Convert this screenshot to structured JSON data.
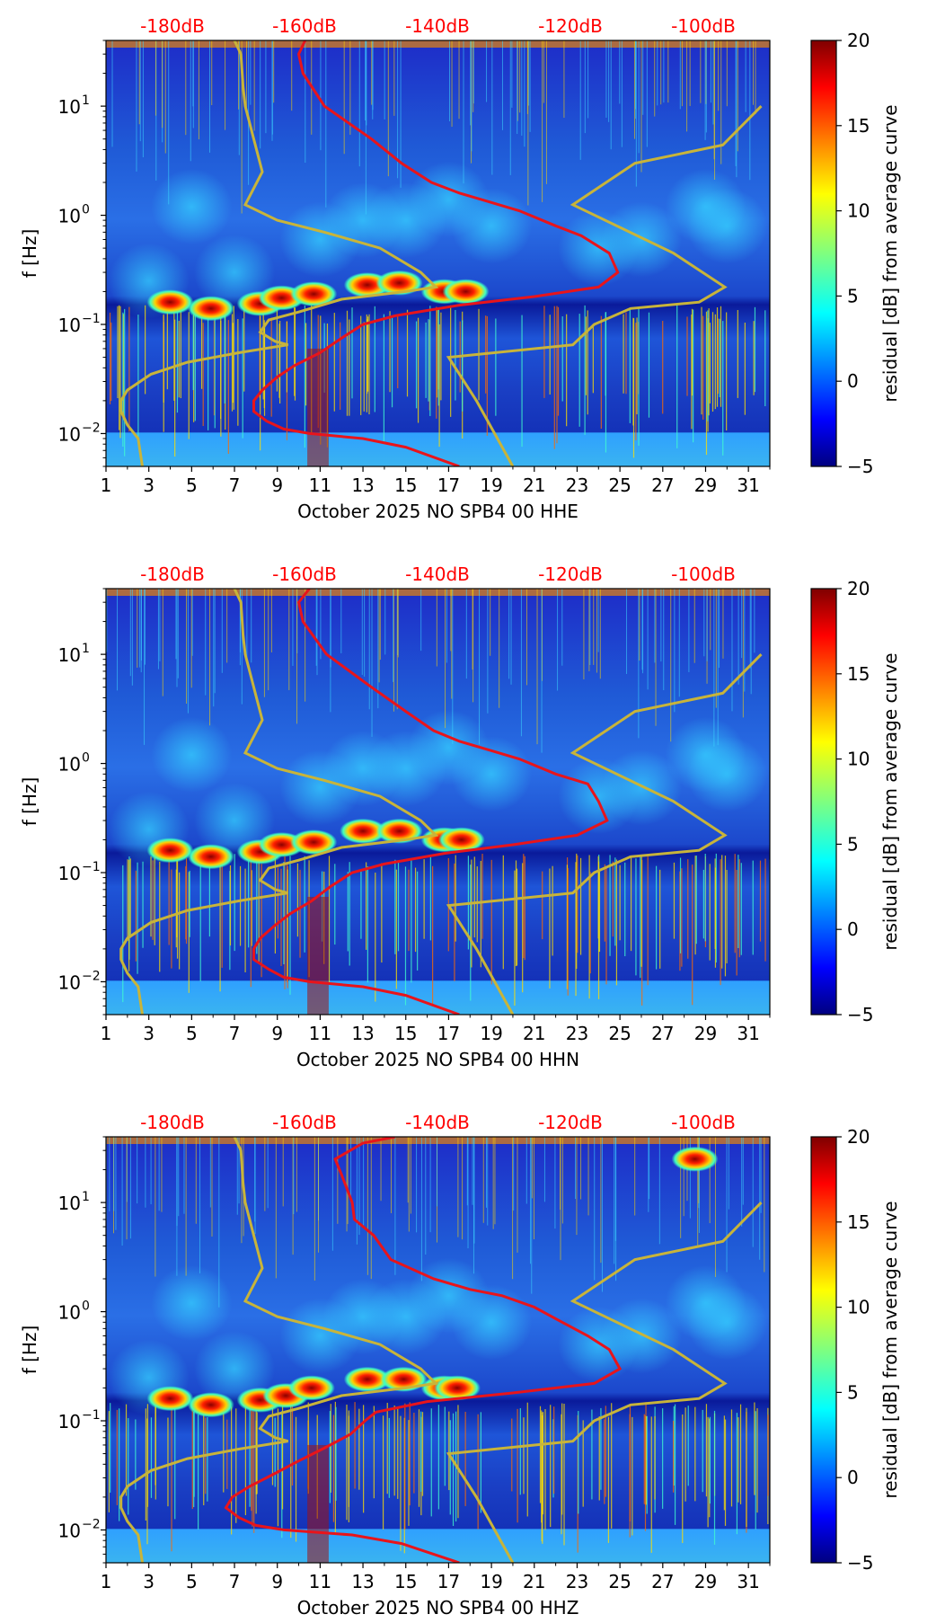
{
  "colorbar": {
    "label": "residual [dB] from average curve",
    "ticks": [
      20,
      15,
      10,
      5,
      0,
      -5
    ],
    "tick_labels": [
      "20",
      "15",
      "10",
      "5",
      "0",
      "−5"
    ],
    "range": [
      -5,
      20
    ],
    "colormap": "jet"
  },
  "colors": {
    "curve_red": "#e8141b",
    "curve_olive": "#c8b43a",
    "db_label": "#ff0000",
    "background_low": "#00008f",
    "background_mid": "#2a8cff"
  },
  "chart_data": [
    {
      "type": "heatmap",
      "component": "HHE",
      "xlabel": "October 2025 NO SPB4 00 HHE",
      "ylabel": "f [Hz]",
      "xlim": [
        1,
        32
      ],
      "ylim": [
        0.005,
        40
      ],
      "x_ticks": [
        "1",
        "3",
        "5",
        "7",
        "9",
        "11",
        "13",
        "15",
        "17",
        "19",
        "21",
        "23",
        "25",
        "27",
        "29",
        "31"
      ],
      "y_ticks": [
        {
          "value": 10,
          "label": "10",
          "exp": "1"
        },
        {
          "value": 1,
          "label": "10",
          "exp": "0"
        },
        {
          "value": 0.1,
          "label": "10",
          "exp": "−1"
        },
        {
          "value": 0.01,
          "label": "10",
          "exp": "−2"
        }
      ],
      "top_labels": [
        "-180dB",
        "-160dB",
        "-140dB",
        "-120dB",
        "-100dB"
      ],
      "red_curve": [
        [
          10.3,
          40
        ],
        [
          10.0,
          30
        ],
        [
          10.2,
          20
        ],
        [
          11.2,
          10
        ],
        [
          13.4,
          5
        ],
        [
          14.8,
          3
        ],
        [
          16.2,
          2
        ],
        [
          17.5,
          1.6
        ],
        [
          18.5,
          1.4
        ],
        [
          20.3,
          1.1
        ],
        [
          22.0,
          0.8
        ],
        [
          23.2,
          0.65
        ],
        [
          24.5,
          0.45
        ],
        [
          24.9,
          0.3
        ],
        [
          24.0,
          0.22
        ],
        [
          21.0,
          0.18
        ],
        [
          17.5,
          0.15
        ],
        [
          14.5,
          0.12
        ],
        [
          13.0,
          0.1
        ],
        [
          12.0,
          0.075
        ],
        [
          11.0,
          0.055
        ],
        [
          9.8,
          0.042
        ],
        [
          9.0,
          0.033
        ],
        [
          8.3,
          0.025
        ],
        [
          7.9,
          0.02
        ],
        [
          7.9,
          0.016
        ],
        [
          8.5,
          0.013
        ],
        [
          9.3,
          0.011
        ],
        [
          10.5,
          0.01
        ],
        [
          13.0,
          0.009
        ],
        [
          15.0,
          0.0075
        ],
        [
          17.5,
          0.005
        ]
      ],
      "olive_curve": [
        [
          7.0,
          40
        ],
        [
          7.3,
          30
        ],
        [
          7.4,
          15
        ],
        [
          7.5,
          10
        ],
        [
          7.9,
          5
        ],
        [
          8.3,
          2.5
        ],
        [
          7.5,
          1.25
        ],
        [
          9.0,
          0.9
        ],
        [
          11.2,
          0.7
        ],
        [
          13.8,
          0.5
        ],
        [
          15.7,
          0.3
        ],
        [
          16.4,
          0.22
        ],
        [
          15.0,
          0.2
        ],
        [
          12.0,
          0.17
        ],
        [
          10.0,
          0.13
        ],
        [
          8.6,
          0.11
        ],
        [
          8.2,
          0.085
        ],
        [
          8.9,
          0.07
        ],
        [
          9.5,
          0.065
        ],
        [
          7.2,
          0.055
        ],
        [
          4.8,
          0.045
        ],
        [
          3.1,
          0.035
        ],
        [
          2.0,
          0.025
        ],
        [
          1.7,
          0.02
        ],
        [
          1.7,
          0.016
        ],
        [
          2.0,
          0.012
        ],
        [
          2.5,
          0.009
        ],
        [
          2.7,
          0.005
        ]
      ],
      "olive_right_curve": [
        [
          20.0,
          0.005
        ],
        [
          18.3,
          0.02
        ],
        [
          17.0,
          0.05
        ],
        [
          22.8,
          0.065
        ],
        [
          23.8,
          0.1
        ],
        [
          25.5,
          0.14
        ],
        [
          28.7,
          0.16
        ],
        [
          29.9,
          0.22
        ],
        [
          27.5,
          0.45
        ],
        [
          22.8,
          1.25
        ],
        [
          25.7,
          3.0
        ],
        [
          29.8,
          4.4
        ],
        [
          31.6,
          10.0
        ]
      ],
      "hotspots": [
        [
          5.9,
          0.14
        ],
        [
          8.2,
          0.155
        ],
        [
          9.2,
          0.175
        ],
        [
          10.7,
          0.19
        ],
        [
          13.2,
          0.23
        ],
        [
          14.7,
          0.24
        ],
        [
          16.8,
          0.2
        ],
        [
          17.8,
          0.2
        ],
        [
          4.0,
          0.16
        ]
      ]
    },
    {
      "type": "heatmap",
      "component": "HHN",
      "xlabel": "October 2025 NO SPB4 00 HHN",
      "ylabel": "f [Hz]",
      "xlim": [
        1,
        32
      ],
      "ylim": [
        0.005,
        40
      ],
      "x_ticks": [
        "1",
        "3",
        "5",
        "7",
        "9",
        "11",
        "13",
        "15",
        "17",
        "19",
        "21",
        "23",
        "25",
        "27",
        "29",
        "31"
      ],
      "y_ticks": [
        {
          "value": 10,
          "label": "10",
          "exp": "1"
        },
        {
          "value": 1,
          "label": "10",
          "exp": "0"
        },
        {
          "value": 0.1,
          "label": "10",
          "exp": "−1"
        },
        {
          "value": 0.01,
          "label": "10",
          "exp": "−2"
        }
      ],
      "top_labels": [
        "-180dB",
        "-160dB",
        "-140dB",
        "-120dB",
        "-100dB"
      ],
      "red_curve": [
        [
          10.5,
          40
        ],
        [
          10.0,
          30
        ],
        [
          10.2,
          20
        ],
        [
          11.3,
          10
        ],
        [
          13.4,
          5
        ],
        [
          15.0,
          3
        ],
        [
          16.3,
          2
        ],
        [
          17.5,
          1.6
        ],
        [
          18.5,
          1.4
        ],
        [
          20.3,
          1.1
        ],
        [
          22.0,
          0.8
        ],
        [
          23.5,
          0.65
        ],
        [
          24.0,
          0.45
        ],
        [
          24.4,
          0.3
        ],
        [
          23.0,
          0.22
        ],
        [
          20.0,
          0.18
        ],
        [
          16.8,
          0.15
        ],
        [
          14.0,
          0.12
        ],
        [
          12.5,
          0.1
        ],
        [
          11.5,
          0.075
        ],
        [
          10.6,
          0.055
        ],
        [
          9.6,
          0.042
        ],
        [
          8.9,
          0.033
        ],
        [
          8.2,
          0.025
        ],
        [
          7.9,
          0.02
        ],
        [
          7.9,
          0.016
        ],
        [
          8.6,
          0.013
        ],
        [
          9.3,
          0.011
        ],
        [
          10.5,
          0.01
        ],
        [
          13.0,
          0.009
        ],
        [
          15.0,
          0.0075
        ],
        [
          17.5,
          0.005
        ]
      ],
      "olive_curve": [
        [
          7.0,
          40
        ],
        [
          7.3,
          30
        ],
        [
          7.4,
          15
        ],
        [
          7.5,
          10
        ],
        [
          7.9,
          5
        ],
        [
          8.3,
          2.5
        ],
        [
          7.5,
          1.25
        ],
        [
          9.0,
          0.9
        ],
        [
          11.2,
          0.7
        ],
        [
          13.8,
          0.5
        ],
        [
          15.7,
          0.3
        ],
        [
          16.4,
          0.22
        ],
        [
          15.0,
          0.2
        ],
        [
          12.0,
          0.17
        ],
        [
          10.0,
          0.13
        ],
        [
          8.6,
          0.11
        ],
        [
          8.2,
          0.085
        ],
        [
          8.9,
          0.07
        ],
        [
          9.5,
          0.065
        ],
        [
          7.2,
          0.055
        ],
        [
          4.8,
          0.045
        ],
        [
          3.1,
          0.035
        ],
        [
          2.0,
          0.025
        ],
        [
          1.7,
          0.02
        ],
        [
          1.7,
          0.016
        ],
        [
          2.0,
          0.012
        ],
        [
          2.5,
          0.009
        ],
        [
          2.7,
          0.005
        ]
      ],
      "olive_right_curve": [
        [
          20.0,
          0.005
        ],
        [
          18.3,
          0.02
        ],
        [
          17.0,
          0.05
        ],
        [
          22.8,
          0.065
        ],
        [
          23.8,
          0.1
        ],
        [
          25.5,
          0.14
        ],
        [
          28.7,
          0.16
        ],
        [
          29.9,
          0.22
        ],
        [
          27.5,
          0.45
        ],
        [
          22.8,
          1.25
        ],
        [
          25.7,
          3.0
        ],
        [
          29.8,
          4.4
        ],
        [
          31.6,
          10.0
        ]
      ],
      "hotspots": [
        [
          5.9,
          0.14
        ],
        [
          8.2,
          0.155
        ],
        [
          9.2,
          0.18
        ],
        [
          10.7,
          0.19
        ],
        [
          13.0,
          0.24
        ],
        [
          14.7,
          0.24
        ],
        [
          16.8,
          0.2
        ],
        [
          17.6,
          0.2
        ],
        [
          4.0,
          0.16
        ]
      ]
    },
    {
      "type": "heatmap",
      "component": "HHZ",
      "xlabel": "October 2025 NO SPB4 00 HHZ",
      "ylabel": "f [Hz]",
      "xlim": [
        1,
        32
      ],
      "ylim": [
        0.005,
        40
      ],
      "x_ticks": [
        "1",
        "3",
        "5",
        "7",
        "9",
        "11",
        "13",
        "15",
        "17",
        "19",
        "21",
        "23",
        "25",
        "27",
        "29",
        "31"
      ],
      "y_ticks": [
        {
          "value": 10,
          "label": "10",
          "exp": "1"
        },
        {
          "value": 1,
          "label": "10",
          "exp": "0"
        },
        {
          "value": 0.1,
          "label": "10",
          "exp": "−1"
        },
        {
          "value": 0.01,
          "label": "10",
          "exp": "−2"
        }
      ],
      "top_labels": [
        "-180dB",
        "-160dB",
        "-140dB",
        "-120dB",
        "-100dB"
      ],
      "red_curve": [
        [
          14.5,
          40
        ],
        [
          13.0,
          35
        ],
        [
          11.7,
          25
        ],
        [
          12.0,
          18
        ],
        [
          12.5,
          10
        ],
        [
          12.6,
          7
        ],
        [
          13.5,
          5
        ],
        [
          14.3,
          3
        ],
        [
          16.3,
          2
        ],
        [
          18.0,
          1.6
        ],
        [
          19.5,
          1.4
        ],
        [
          21.0,
          1.1
        ],
        [
          22.3,
          0.8
        ],
        [
          23.5,
          0.6
        ],
        [
          24.5,
          0.45
        ],
        [
          25.0,
          0.3
        ],
        [
          23.8,
          0.22
        ],
        [
          20.0,
          0.18
        ],
        [
          16.0,
          0.15
        ],
        [
          13.6,
          0.12
        ],
        [
          13.1,
          0.1
        ],
        [
          12.4,
          0.075
        ],
        [
          11.1,
          0.055
        ],
        [
          9.9,
          0.042
        ],
        [
          8.9,
          0.033
        ],
        [
          7.7,
          0.025
        ],
        [
          6.9,
          0.02
        ],
        [
          6.6,
          0.016
        ],
        [
          7.2,
          0.013
        ],
        [
          8.0,
          0.011
        ],
        [
          9.3,
          0.01
        ],
        [
          12.5,
          0.009
        ],
        [
          14.8,
          0.0075
        ],
        [
          17.5,
          0.005
        ]
      ],
      "olive_curve": [
        [
          7.0,
          40
        ],
        [
          7.3,
          30
        ],
        [
          7.4,
          15
        ],
        [
          7.5,
          10
        ],
        [
          7.9,
          5
        ],
        [
          8.3,
          2.5
        ],
        [
          7.5,
          1.25
        ],
        [
          9.0,
          0.9
        ],
        [
          11.2,
          0.7
        ],
        [
          13.8,
          0.5
        ],
        [
          15.7,
          0.3
        ],
        [
          16.4,
          0.22
        ],
        [
          15.0,
          0.2
        ],
        [
          12.0,
          0.17
        ],
        [
          10.0,
          0.13
        ],
        [
          8.6,
          0.11
        ],
        [
          8.2,
          0.085
        ],
        [
          8.9,
          0.07
        ],
        [
          9.5,
          0.065
        ],
        [
          7.2,
          0.055
        ],
        [
          4.8,
          0.045
        ],
        [
          3.1,
          0.035
        ],
        [
          2.0,
          0.025
        ],
        [
          1.7,
          0.02
        ],
        [
          1.7,
          0.016
        ],
        [
          2.0,
          0.012
        ],
        [
          2.5,
          0.009
        ],
        [
          2.7,
          0.005
        ]
      ],
      "olive_right_curve": [
        [
          20.0,
          0.005
        ],
        [
          18.3,
          0.02
        ],
        [
          17.0,
          0.05
        ],
        [
          22.8,
          0.065
        ],
        [
          23.8,
          0.1
        ],
        [
          25.5,
          0.14
        ],
        [
          28.7,
          0.16
        ],
        [
          29.9,
          0.22
        ],
        [
          27.5,
          0.45
        ],
        [
          22.8,
          1.25
        ],
        [
          25.7,
          3.0
        ],
        [
          29.8,
          4.4
        ],
        [
          31.6,
          10.0
        ]
      ],
      "hotspots": [
        [
          5.9,
          0.14
        ],
        [
          8.2,
          0.155
        ],
        [
          9.4,
          0.17
        ],
        [
          10.6,
          0.2
        ],
        [
          13.2,
          0.24
        ],
        [
          14.9,
          0.24
        ],
        [
          16.8,
          0.2
        ],
        [
          17.4,
          0.2
        ],
        [
          4.0,
          0.16
        ],
        [
          28.5,
          25
        ]
      ]
    }
  ]
}
